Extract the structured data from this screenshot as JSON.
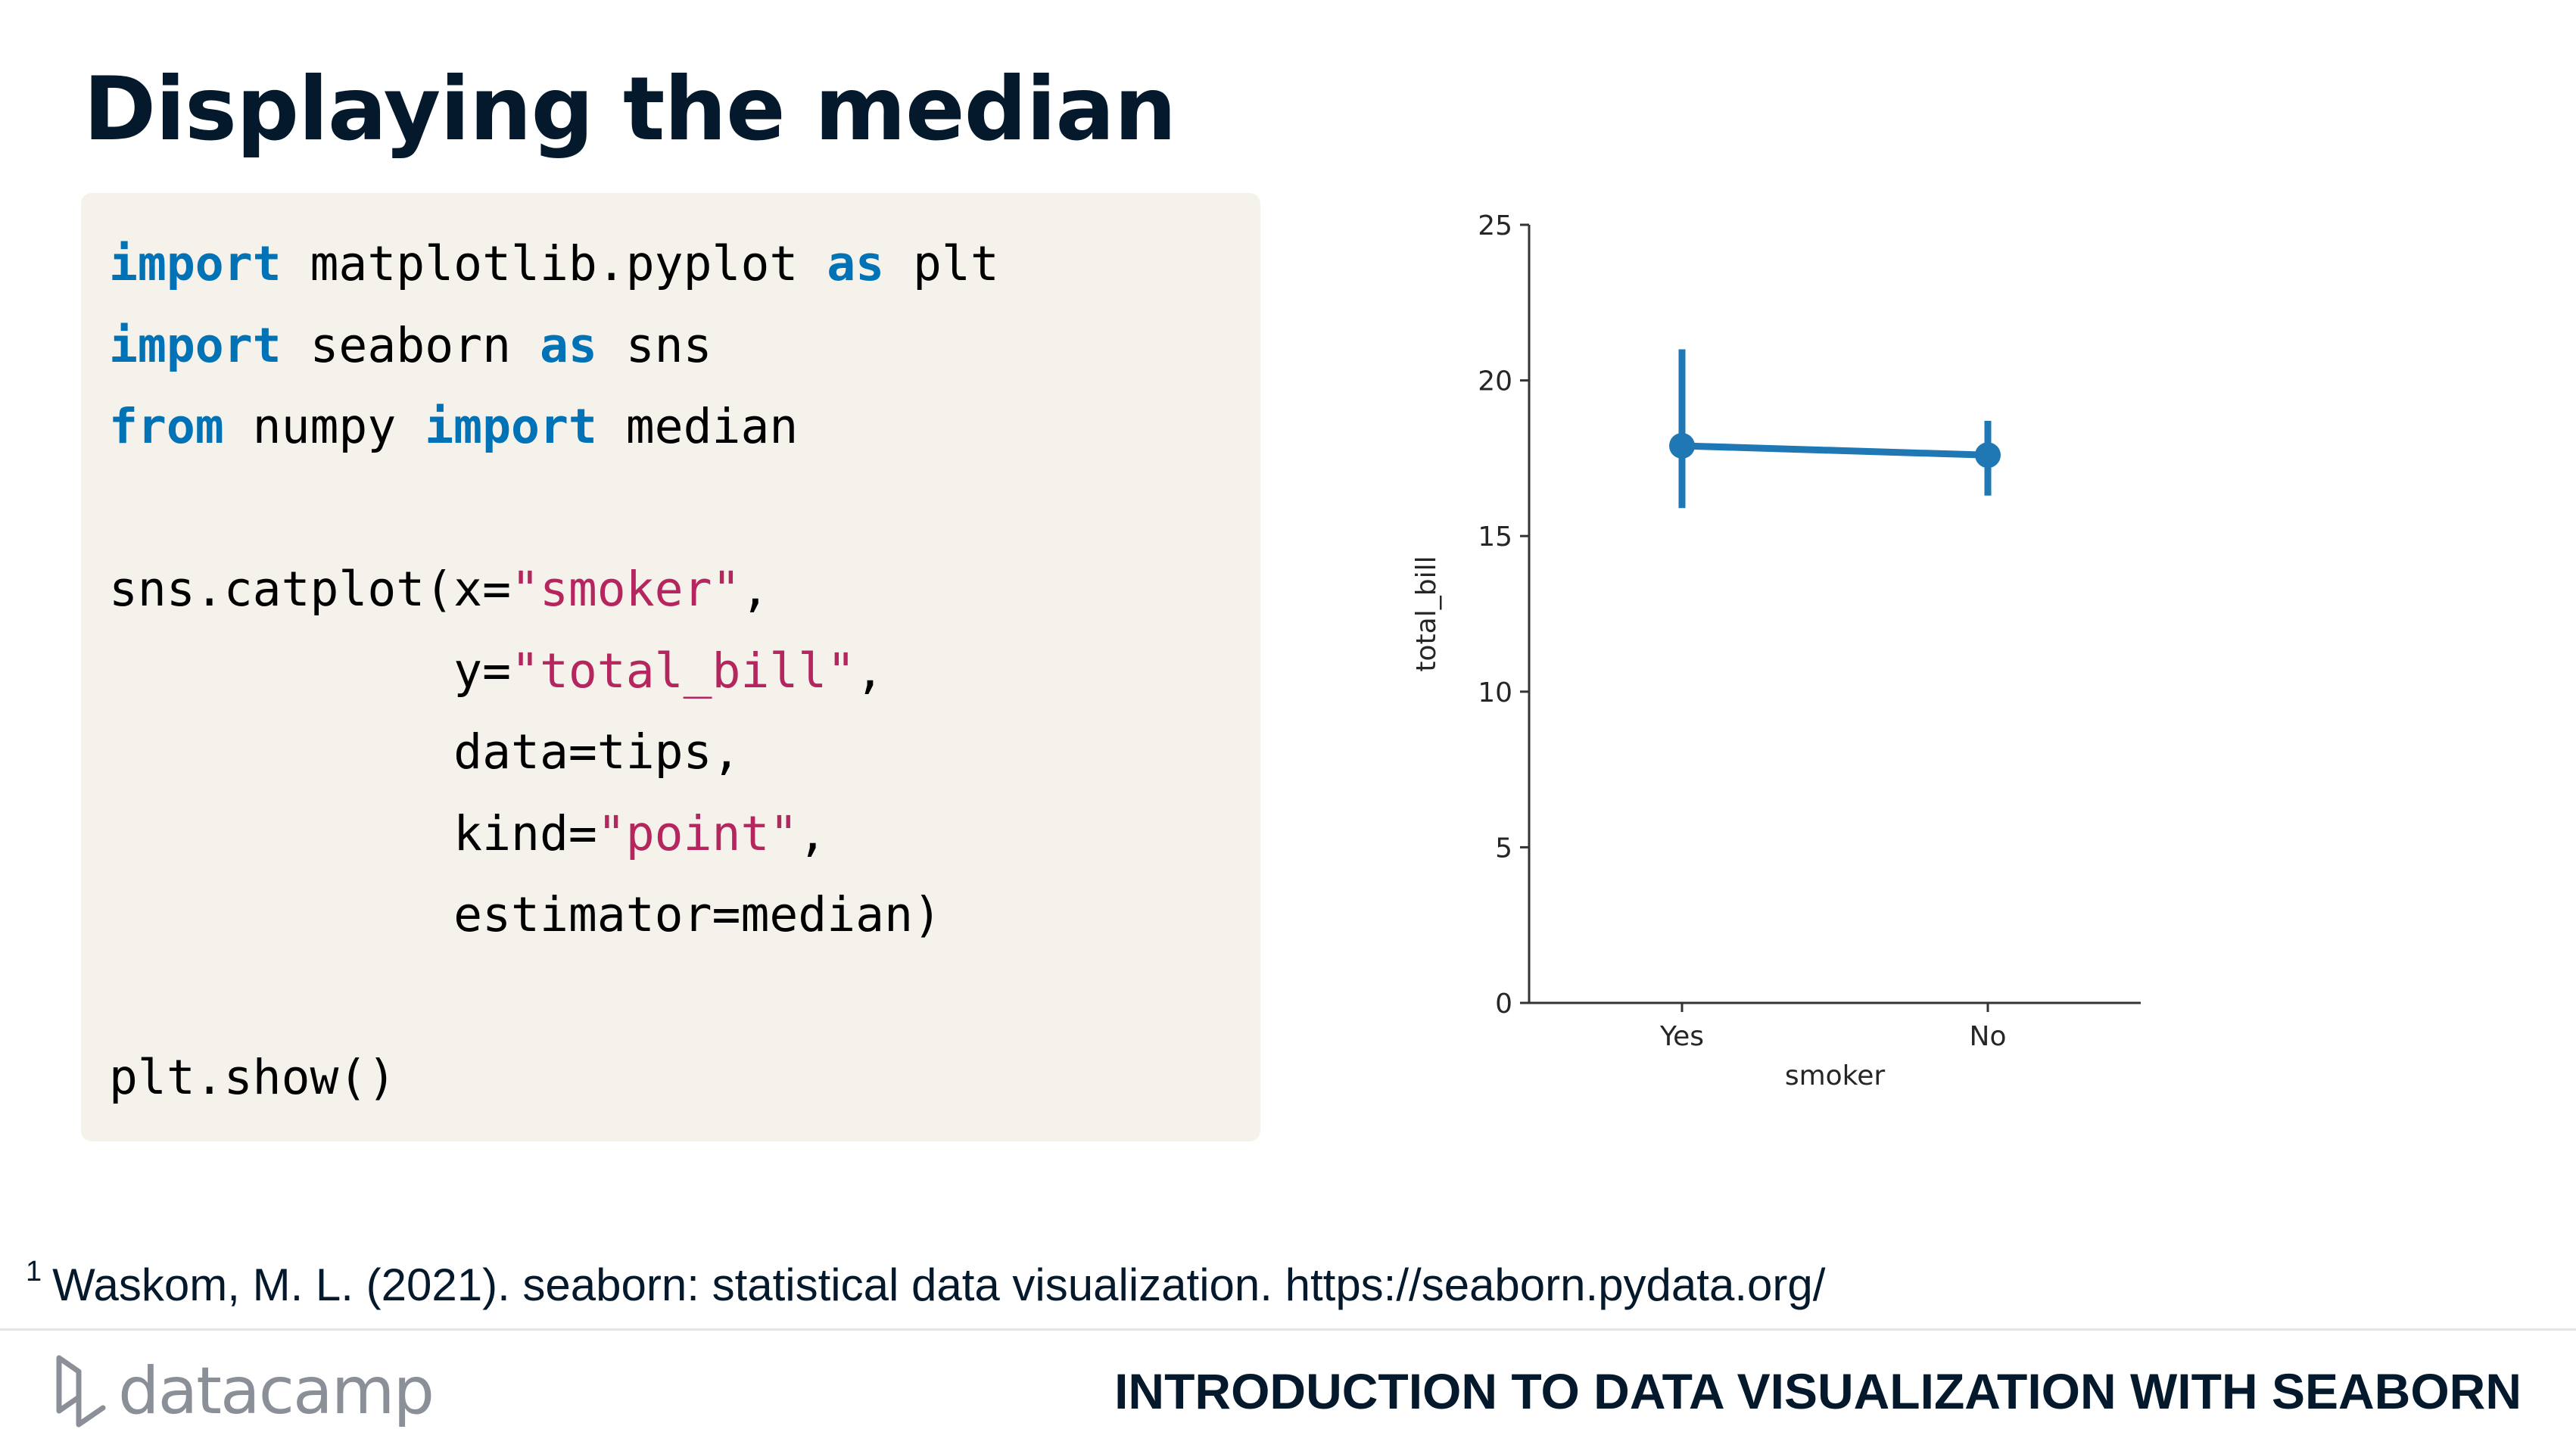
{
  "slide": {
    "title": "Displaying the median"
  },
  "code": {
    "lines": [
      [
        {
          "t": "import",
          "c": "kw"
        },
        {
          "t": " matplotlib.pyplot "
        },
        {
          "t": "as",
          "c": "kw"
        },
        {
          "t": " plt"
        }
      ],
      [
        {
          "t": "import",
          "c": "kw"
        },
        {
          "t": " seaborn "
        },
        {
          "t": "as",
          "c": "kw"
        },
        {
          "t": " sns"
        }
      ],
      [
        {
          "t": "from",
          "c": "kw"
        },
        {
          "t": " numpy "
        },
        {
          "t": "import",
          "c": "kw"
        },
        {
          "t": " median"
        }
      ],
      [],
      [
        {
          "t": "sns.catplot(x="
        },
        {
          "t": "\"smoker\"",
          "c": "str"
        },
        {
          "t": ","
        }
      ],
      [
        {
          "t": "            y="
        },
        {
          "t": "\"total_bill\"",
          "c": "str"
        },
        {
          "t": ","
        }
      ],
      [
        {
          "t": "            data=tips,"
        }
      ],
      [
        {
          "t": "            kind="
        },
        {
          "t": "\"point\"",
          "c": "str"
        },
        {
          "t": ","
        }
      ],
      [
        {
          "t": "            estimator=median)"
        }
      ],
      [],
      [
        {
          "t": "plt.show()"
        }
      ]
    ]
  },
  "chart_data": {
    "type": "line",
    "categories": [
      "Yes",
      "No"
    ],
    "series": [
      {
        "values": [
          17.9,
          17.6
        ],
        "ci_low": [
          15.9,
          16.3
        ],
        "ci_high": [
          21.0,
          18.7
        ]
      }
    ],
    "xlabel": "smoker",
    "ylabel": "total_bill",
    "ylim": [
      0,
      25
    ],
    "yticks": [
      0,
      5,
      10,
      15,
      20,
      25
    ],
    "ytick_labels": [
      "0",
      "5",
      "10",
      "15",
      "20",
      "25"
    ],
    "grid": false,
    "color": "#1f77b4"
  },
  "footnote": {
    "marker": "1",
    "text": "Waskom, M. L. (2021). seaborn: statistical data visualization. https://seaborn.pydata.org/"
  },
  "footer": {
    "logo_text": "datacamp",
    "course_title": "INTRODUCTION TO DATA VISUALIZATION WITH SEABORN"
  },
  "colors": {
    "keyword": "#0072b5",
    "string": "#b5265f",
    "code_background": "#f5f2eb",
    "title": "#05192d",
    "logo": "#8a8f98"
  }
}
